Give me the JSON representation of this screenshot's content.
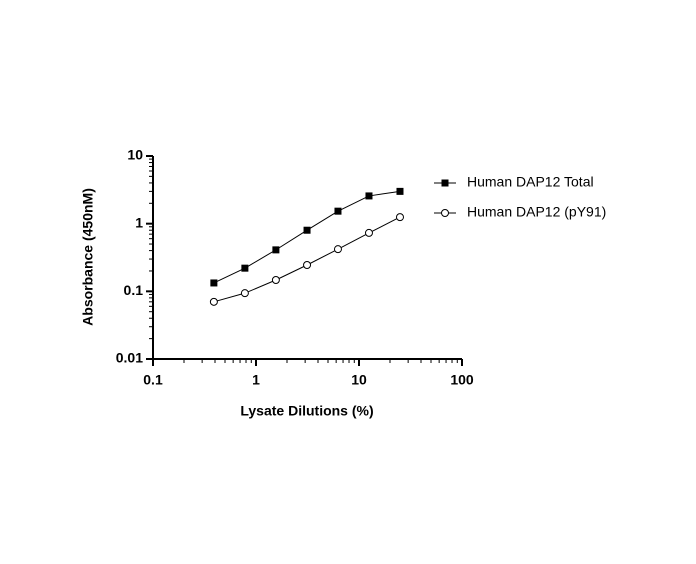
{
  "chart_data": {
    "type": "line",
    "x_label": "Lysate Dilutions (%)",
    "y_label": "Absorbance (450nM)",
    "x_scale": "log",
    "y_scale": "log",
    "xlim": [
      0.1,
      100
    ],
    "xticks": [
      0.1,
      1,
      10,
      100
    ],
    "ylim": [
      0.01,
      10
    ],
    "yticks": [
      0.01,
      0.1,
      1,
      10
    ],
    "x_minor_ticks": [
      0.2,
      0.3,
      0.4,
      0.5,
      0.6,
      0.7,
      0.8,
      0.9,
      2,
      3,
      4,
      5,
      6,
      7,
      8,
      9,
      20,
      30,
      40,
      50,
      60,
      70,
      80,
      90
    ],
    "y_minor_ticks": [
      0.02,
      0.03,
      0.04,
      0.05,
      0.06,
      0.07,
      0.08,
      0.09,
      0.2,
      0.3,
      0.4,
      0.5,
      0.6,
      0.7,
      0.8,
      0.9,
      2,
      3,
      4,
      5,
      6,
      7,
      8,
      9
    ],
    "legend": "right",
    "x": [
      0.39,
      0.78,
      1.56,
      3.13,
      6.25,
      12.5,
      25
    ],
    "series": [
      {
        "name": "Human DAP12 Total",
        "color": "#000000",
        "marker": "filled-square",
        "values": [
          0.133,
          0.22,
          0.41,
          0.8,
          1.53,
          2.57,
          3.0
        ]
      },
      {
        "name": "Human DAP12 (pY91)",
        "color": "#000000",
        "marker": "open-circle",
        "values": [
          0.07,
          0.094,
          0.147,
          0.245,
          0.42,
          0.73,
          1.25
        ]
      }
    ]
  }
}
